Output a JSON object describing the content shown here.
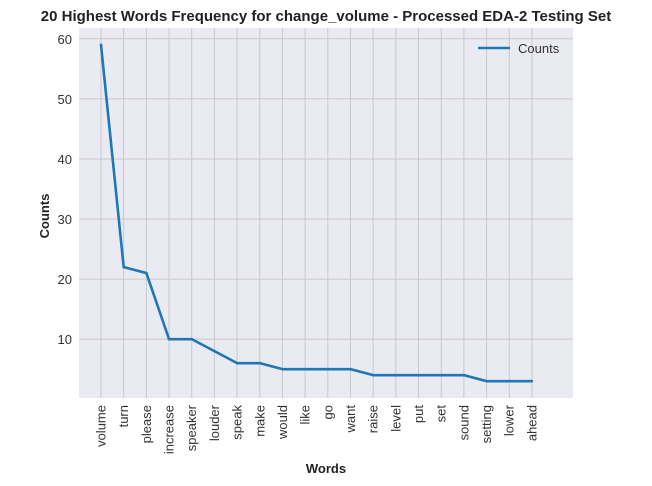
{
  "chart_data": {
    "type": "line",
    "title": "20 Highest Words Frequency for change_volume - Processed EDA-2 Testing Set",
    "xlabel": "Words",
    "ylabel": "Counts",
    "categories": [
      "volume",
      "turn",
      "please",
      "increase",
      "speaker",
      "louder",
      "speak",
      "make",
      "would",
      "like",
      "go",
      "want",
      "raise",
      "level",
      "put",
      "set",
      "sound",
      "setting",
      "lower",
      "ahead"
    ],
    "series": [
      {
        "name": "Counts",
        "values": [
          59,
          22,
          21,
          10,
          10,
          8,
          6,
          6,
          5,
          5,
          5,
          5,
          4,
          4,
          4,
          4,
          4,
          3,
          3,
          3
        ]
      }
    ],
    "yticks": [
      10,
      20,
      30,
      40,
      50,
      60
    ],
    "ylim": [
      0.2,
      61.8
    ],
    "grid": true,
    "legend_position": "top-right",
    "colors": {
      "line": "#1f77b4",
      "plot_bg": "#eaeaf2",
      "grid": "#c8c8cc"
    }
  }
}
